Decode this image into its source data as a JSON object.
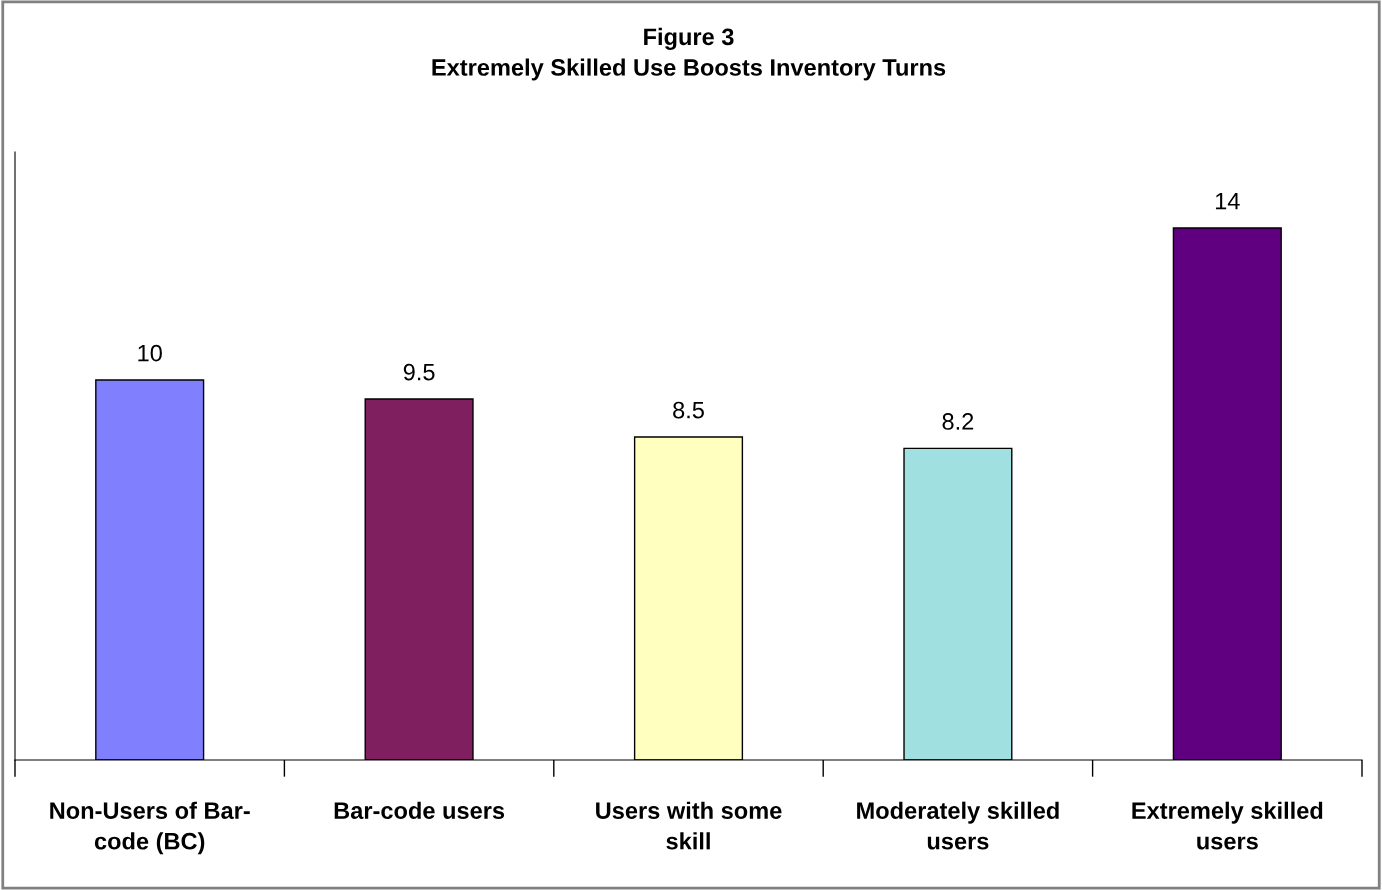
{
  "chart_data": {
    "type": "bar",
    "title": "Figure 3\nExtremely Skilled Use Boosts Inventory Turns",
    "categories": [
      "Non-Users of Bar-\ncode (BC)",
      "Bar-code users",
      "Users with some\nskill",
      "Moderately skilled\nusers",
      "Extremely skilled\nusers"
    ],
    "values": [
      10,
      9.5,
      8.5,
      8.2,
      14
    ],
    "colors": [
      "#8080ff",
      "#7f1f5f",
      "#ffffc0",
      "#a0e0e0",
      "#600080"
    ],
    "ylim": [
      0,
      16
    ],
    "tick_labels": "x",
    "data_labels": true,
    "grid": false,
    "legend": false
  }
}
